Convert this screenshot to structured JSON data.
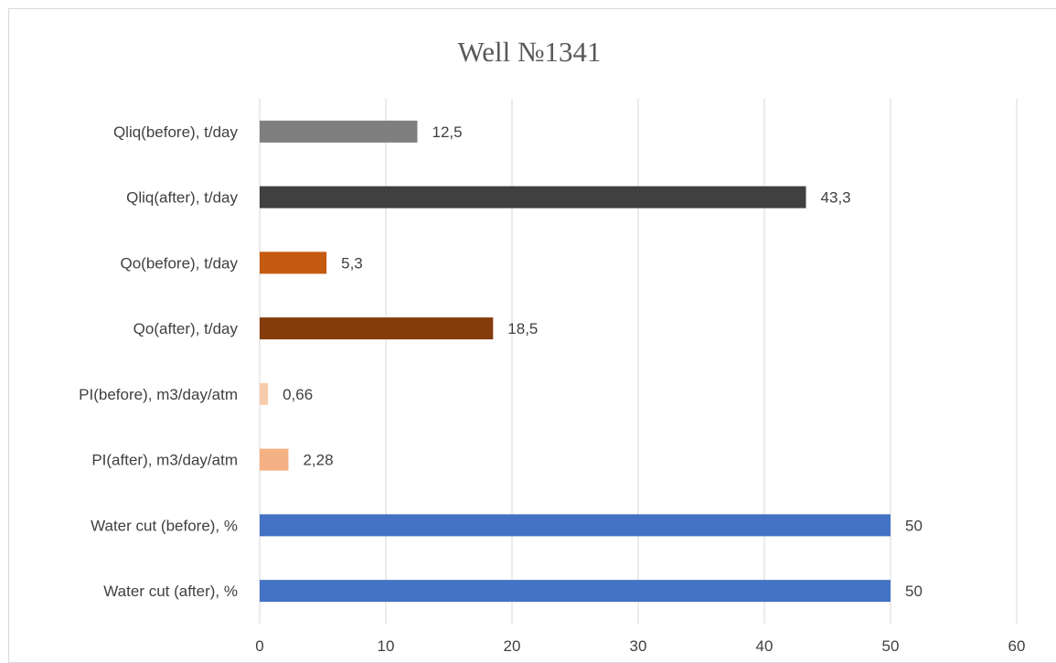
{
  "chart_data": {
    "type": "bar",
    "orientation": "horizontal",
    "title": "Well №1341",
    "xlabel": "",
    "ylabel": "",
    "xlim": [
      0,
      60
    ],
    "x_ticks": [
      "0",
      "10",
      "20",
      "30",
      "40",
      "50",
      "60"
    ],
    "grid": true,
    "legend": "none",
    "categories": [
      "Qliq(before), t/day",
      "Qliq(after), t/day",
      "Qo(before), t/day",
      "Qo(after), t/day",
      "PI(before), m3/day/atm",
      "PI(after), m3/day/atm",
      "Water cut (before), %",
      "Water cut (after), %"
    ],
    "values": [
      12.5,
      43.3,
      5.3,
      18.5,
      0.66,
      2.28,
      50,
      50
    ],
    "value_labels": [
      "12,5",
      "43,3",
      "5,3",
      "18,5",
      "0,66",
      "2,28",
      "50",
      "50"
    ],
    "colors": [
      "#7f7f7f",
      "#404040",
      "#c55a11",
      "#843c0c",
      "#f8cbad",
      "#f4b183",
      "#4472c4",
      "#4472c4"
    ]
  }
}
